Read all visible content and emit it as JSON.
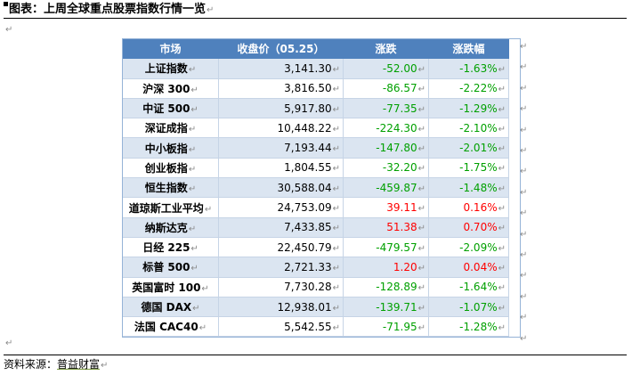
{
  "title": "图表：上周全球重点股票指数行情一览",
  "paragraph_mark": "↵",
  "table": {
    "headers": [
      "市场",
      "收盘价（05.25）",
      "涨跌",
      "涨跌幅"
    ],
    "rows": [
      {
        "market": "上证指数",
        "close": "3,141.30",
        "change": "-52.00",
        "pct": "-1.63%",
        "dir": "neg"
      },
      {
        "market": "沪深 300",
        "close": "3,816.50",
        "change": "-86.57",
        "pct": "-2.22%",
        "dir": "neg"
      },
      {
        "market": "中证 500",
        "close": "5,917.80",
        "change": "-77.35",
        "pct": "-1.29%",
        "dir": "neg"
      },
      {
        "market": "深证成指",
        "close": "10,448.22",
        "change": "-224.30",
        "pct": "-2.10%",
        "dir": "neg"
      },
      {
        "market": "中小板指",
        "close": "7,193.44",
        "change": "-147.80",
        "pct": "-2.01%",
        "dir": "neg"
      },
      {
        "market": "创业板指",
        "close": "1,804.55",
        "change": "-32.20",
        "pct": "-1.75%",
        "dir": "neg"
      },
      {
        "market": "恒生指数",
        "close": "30,588.04",
        "change": "-459.87",
        "pct": "-1.48%",
        "dir": "neg"
      },
      {
        "market": "道琼斯工业平均",
        "close": "24,753.09",
        "change": "39.11",
        "pct": "0.16%",
        "dir": "pos"
      },
      {
        "market": "纳斯达克",
        "close": "7,433.85",
        "change": "51.38",
        "pct": "0.70%",
        "dir": "pos"
      },
      {
        "market": "日经 225",
        "close": "22,450.79",
        "change": "-479.57",
        "pct": "-2.09%",
        "dir": "neg"
      },
      {
        "market": "标普 500",
        "close": "2,721.33",
        "change": "1.20",
        "pct": "0.04%",
        "dir": "pos"
      },
      {
        "market": "英国富时 100",
        "close": "7,730.28",
        "change": "-128.89",
        "pct": "-1.64%",
        "dir": "neg"
      },
      {
        "market": "德国 DAX",
        "close": "12,938.01",
        "change": "-139.71",
        "pct": "-1.07%",
        "dir": "neg"
      },
      {
        "market": "法国 CAC40",
        "close": "5,542.55",
        "change": "-71.95",
        "pct": "-1.28%",
        "dir": "neg"
      }
    ]
  },
  "source": {
    "label": "资料来源：",
    "name": "普益财富"
  },
  "colors": {
    "header_bg": "#4f81bd",
    "band_bg": "#dbe5f1",
    "negative": "#00a000",
    "positive": "#ff0000"
  }
}
